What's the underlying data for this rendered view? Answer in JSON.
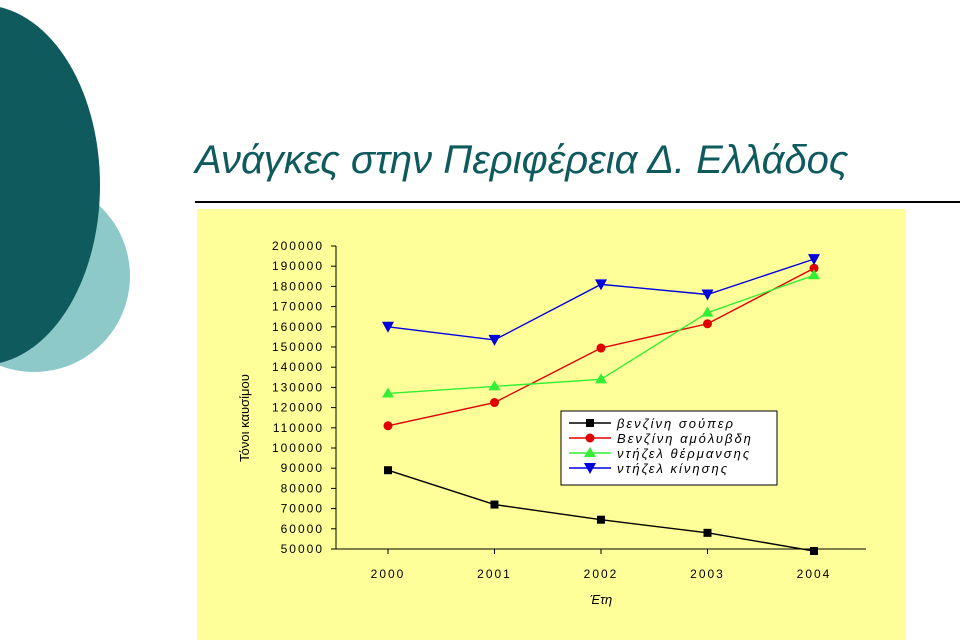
{
  "title": "Ανάγκες στην Περιφέρεια Δ. Ελλάδος",
  "colors": {
    "title": "#0e5a5c",
    "panel": "#ffff99",
    "deco_dark": "#0e5a5c",
    "deco_light": "#8ec9c9"
  },
  "chart_data": {
    "type": "line",
    "xlabel": "Έτη",
    "ylabel": "Τόνοι καυσίμου",
    "x": [
      2000,
      2001,
      2002,
      2003,
      2004
    ],
    "ylim": [
      50000,
      200000
    ],
    "yticks": [
      200000,
      190000,
      180000,
      170000,
      160000,
      150000,
      140000,
      130000,
      120000,
      110000,
      100000,
      90000,
      80000,
      70000,
      60000,
      50000
    ],
    "grid": false,
    "legend_position": "center-right",
    "series": [
      {
        "name": "βενζίνη σούπερ",
        "values": [
          89000,
          72000,
          64500,
          58000,
          49000
        ],
        "color": "#000000",
        "marker": "square"
      },
      {
        "name": "Βενζίνη αμόλυβδη",
        "values": [
          111000,
          122500,
          149500,
          161500,
          189000
        ],
        "color": "#e00000",
        "marker": "circle"
      },
      {
        "name": "ντήζελ θέρμανσης",
        "values": [
          127000,
          130500,
          134000,
          167000,
          185500
        ],
        "color": "#33ee33",
        "marker": "triangle-up"
      },
      {
        "name": "ντήζελ κίνησης",
        "values": [
          160000,
          153500,
          181000,
          176000,
          193500
        ],
        "color": "#0000dd",
        "marker": "triangle-down"
      }
    ]
  }
}
